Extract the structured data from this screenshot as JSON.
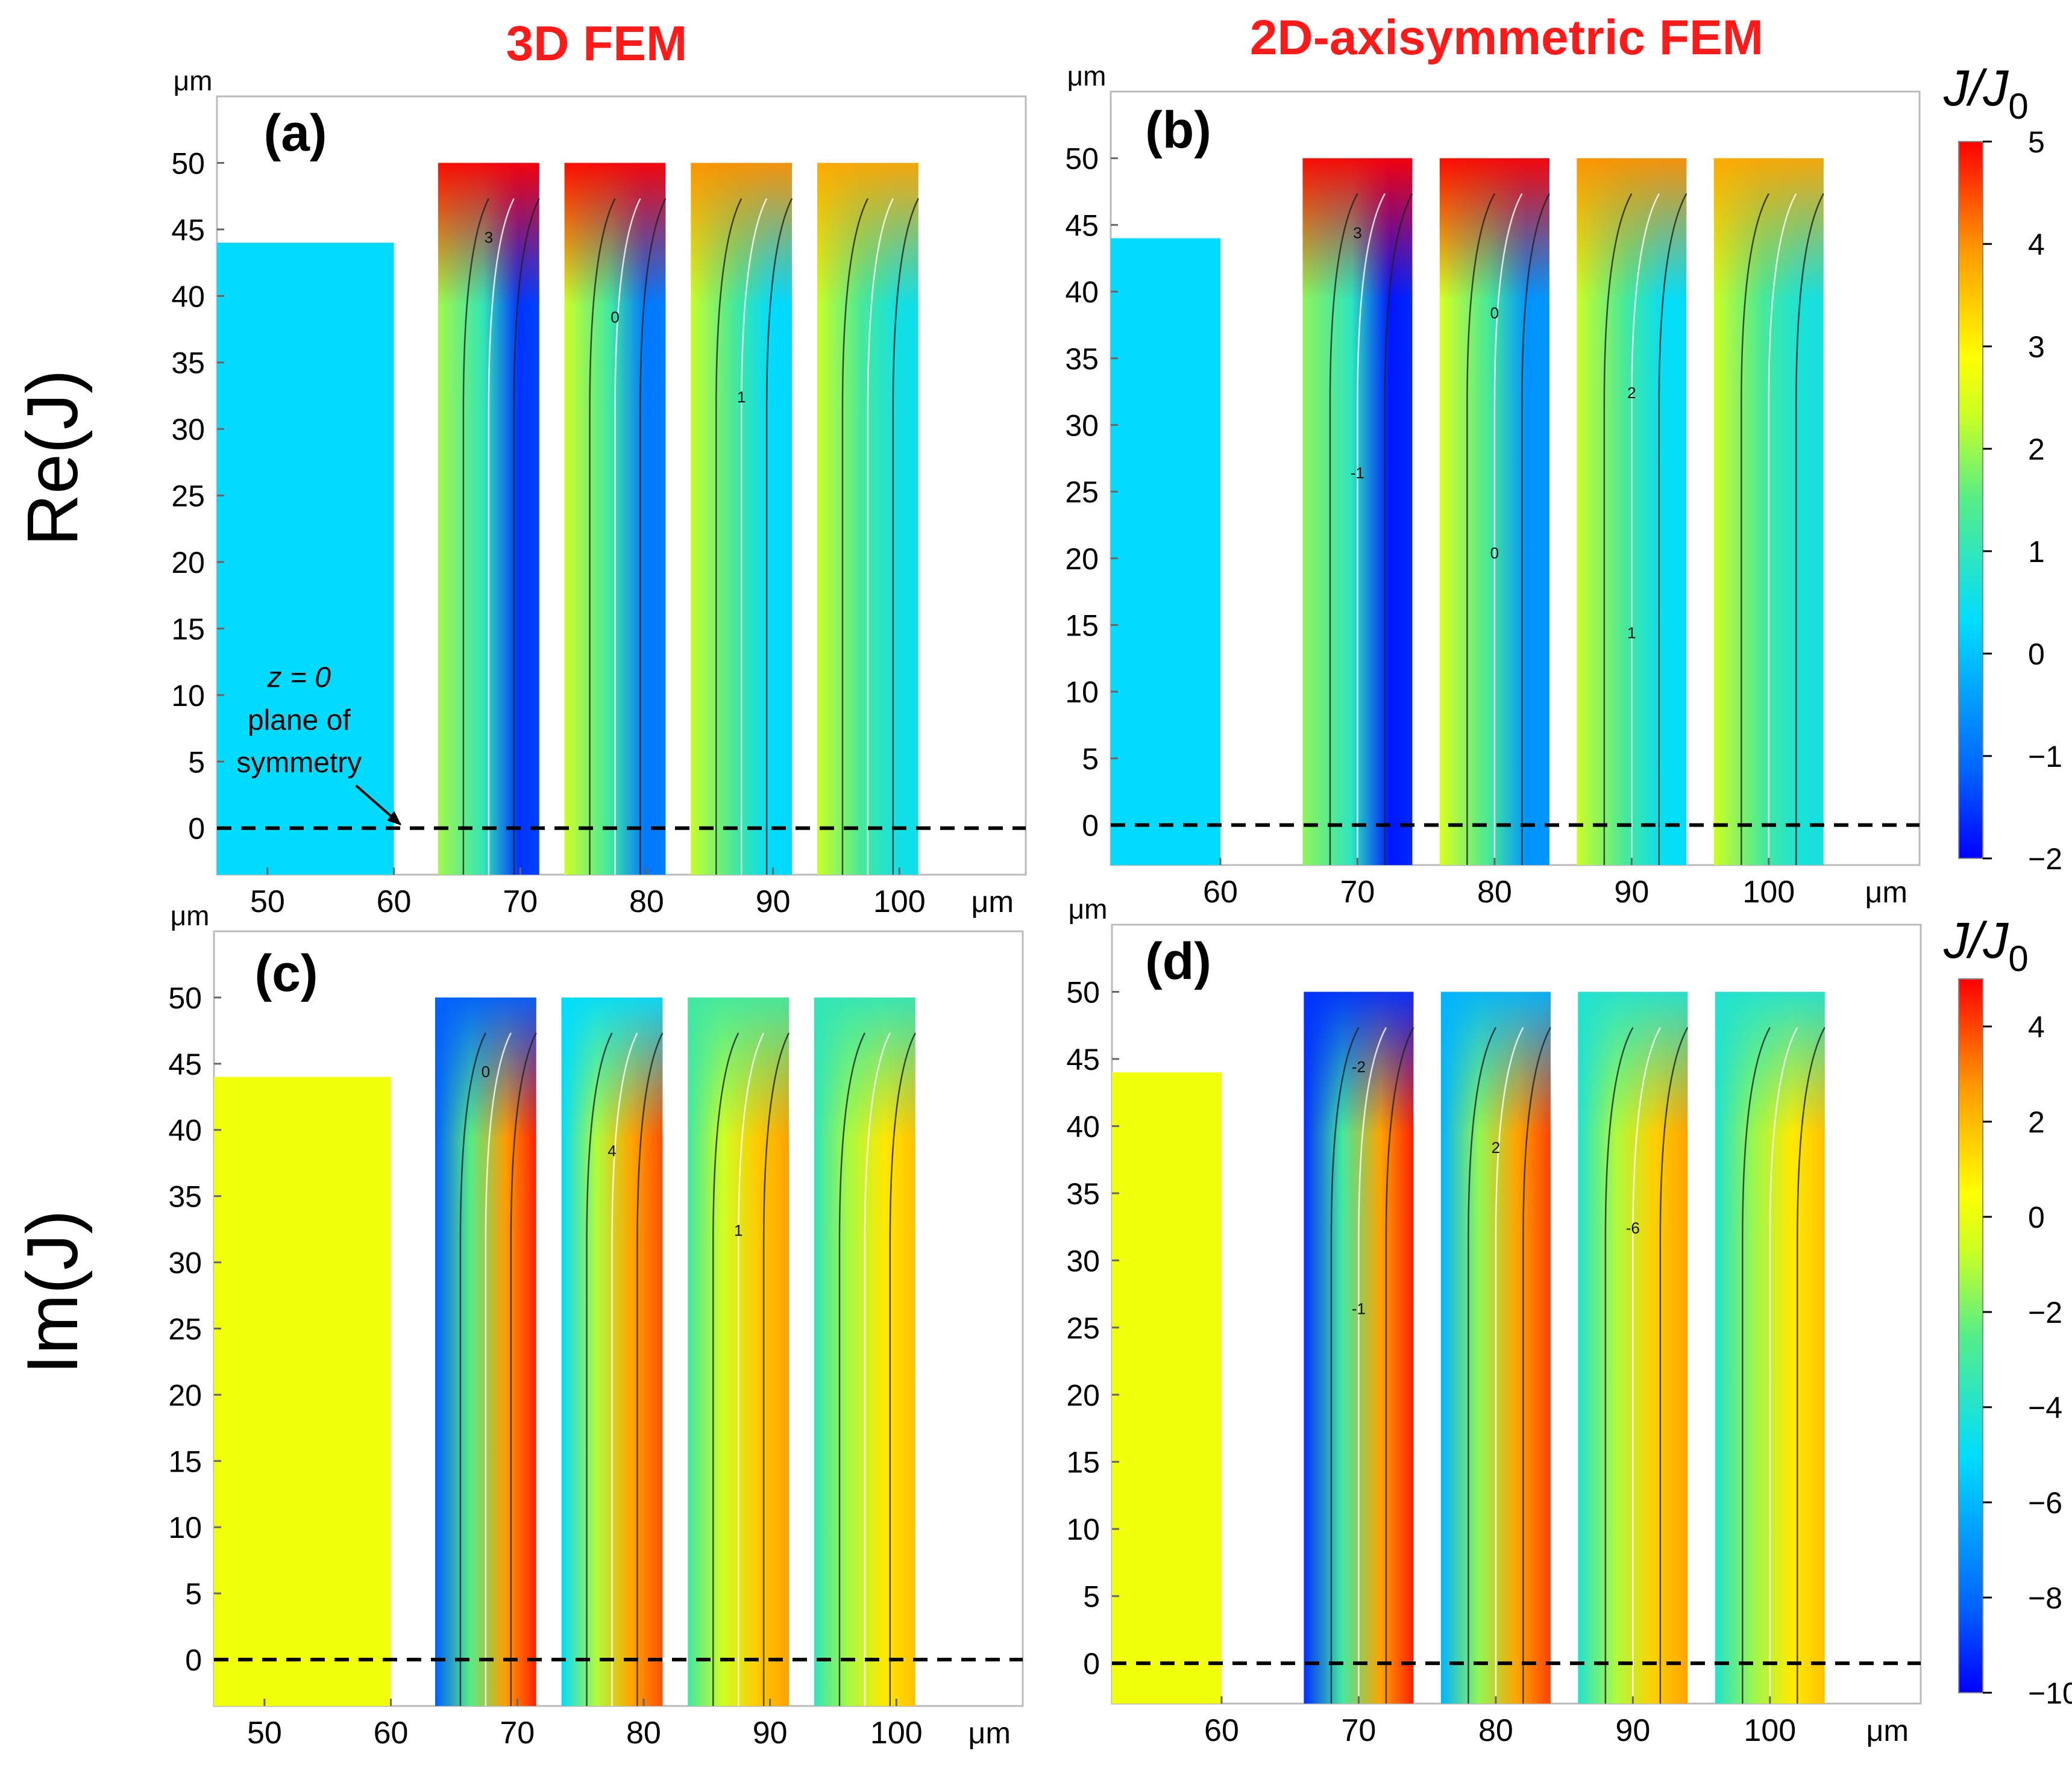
{
  "figure": {
    "col_titles": [
      "3D FEM",
      "2D-axisymmetric FEM"
    ],
    "row_labels": [
      "Re(J)",
      "Im(J)"
    ],
    "title_color": "#ff1a1a",
    "colorbar_label": {
      "base": "J/J",
      "sub": "0"
    }
  },
  "chart_data": [
    {
      "type": "heatmap",
      "panel": "(a)",
      "quantity": "Re(J)",
      "method": "3D FEM",
      "xlabel": "μm",
      "ylabel": "μm",
      "xlim": [
        46,
        110
      ],
      "ylim": [
        -3.5,
        55
      ],
      "xticks": [
        "50",
        "60",
        "70",
        "80",
        "90",
        "100"
      ],
      "yticks": [
        "0",
        "5",
        "10",
        "15",
        "20",
        "25",
        "30",
        "35",
        "40",
        "45",
        "50"
      ],
      "regions": [
        {
          "name": "inner conductor",
          "x": [
            46,
            60
          ],
          "z": [
            -3.5,
            44
          ],
          "fill_value": 0.3
        },
        {
          "name": "turn 1",
          "x": [
            63.5,
            71.5
          ],
          "z": [
            -3.5,
            50
          ],
          "value_range": [
            -1.5,
            5
          ]
        },
        {
          "name": "turn 2",
          "x": [
            73.5,
            81.5
          ],
          "z": [
            -3.5,
            50
          ],
          "value_range": [
            -0.8,
            5
          ]
        },
        {
          "name": "turn 3",
          "x": [
            83.5,
            91.5
          ],
          "z": [
            -3.5,
            50
          ],
          "value_range": [
            0.3,
            4
          ]
        },
        {
          "name": "turn 4",
          "x": [
            93.5,
            101.5
          ],
          "z": [
            -3.5,
            50
          ],
          "value_range": [
            0.6,
            3.8
          ]
        }
      ],
      "contour_labels": [
        "3",
        "0",
        "1"
      ],
      "annotation": {
        "z_label": "z = 0",
        "line1": "plane of",
        "line2": "symmetry"
      },
      "symmetry_plane_z": 0
    },
    {
      "type": "heatmap",
      "panel": "(b)",
      "quantity": "Re(J)",
      "method": "2D-axisymmetric FEM",
      "xlabel": "μm",
      "ylabel": "μm",
      "xlim": [
        52,
        111
      ],
      "ylim": [
        -3,
        55
      ],
      "xticks": [
        "60",
        "70",
        "80",
        "90",
        "100"
      ],
      "yticks": [
        "0",
        "5",
        "10",
        "15",
        "20",
        "25",
        "30",
        "35",
        "40",
        "45",
        "50"
      ],
      "regions": [
        {
          "name": "inner conductor",
          "x": [
            52,
            60
          ],
          "z": [
            -3,
            44
          ],
          "fill_value": 0.3
        },
        {
          "name": "turn 1",
          "x": [
            66,
            74
          ],
          "z": [
            -3,
            50
          ],
          "value_range": [
            -1.8,
            5
          ]
        },
        {
          "name": "turn 2",
          "x": [
            76,
            84
          ],
          "z": [
            -3,
            50
          ],
          "value_range": [
            -0.5,
            5
          ]
        },
        {
          "name": "turn 3",
          "x": [
            86,
            94
          ],
          "z": [
            -3,
            50
          ],
          "value_range": [
            0.4,
            4
          ]
        },
        {
          "name": "turn 4",
          "x": [
            96,
            104
          ],
          "z": [
            -3,
            50
          ],
          "value_range": [
            0.7,
            3.8
          ]
        }
      ],
      "contour_labels": [
        "3",
        "0",
        "2",
        "-1",
        "0",
        "1"
      ],
      "symmetry_plane_z": 0
    },
    {
      "type": "heatmap",
      "panel": "(c)",
      "quantity": "Im(J)",
      "method": "3D FEM",
      "xlabel": "μm",
      "ylabel": "μm",
      "xlim": [
        46,
        110
      ],
      "ylim": [
        -3.5,
        55
      ],
      "xticks": [
        "50",
        "60",
        "70",
        "80",
        "90",
        "100"
      ],
      "yticks": [
        "0",
        "5",
        "10",
        "15",
        "20",
        "25",
        "30",
        "35",
        "40",
        "45",
        "50"
      ],
      "regions": [
        {
          "name": "inner conductor",
          "x": [
            46,
            60
          ],
          "z": [
            -3.5,
            44
          ],
          "fill_value": 0.2
        },
        {
          "name": "turn 1",
          "x": [
            63.5,
            71.5
          ],
          "z": [
            -3.5,
            50
          ],
          "value_range": [
            -8,
            4.5
          ]
        },
        {
          "name": "turn 2",
          "x": [
            73.5,
            81.5
          ],
          "z": [
            -3.5,
            50
          ],
          "value_range": [
            -5,
            3.8
          ]
        },
        {
          "name": "turn 3",
          "x": [
            83.5,
            91.5
          ],
          "z": [
            -3.5,
            50
          ],
          "value_range": [
            -3,
            2.5
          ]
        },
        {
          "name": "turn 4",
          "x": [
            93.5,
            101.5
          ],
          "z": [
            -3.5,
            50
          ],
          "value_range": [
            -3.5,
            1.8
          ]
        }
      ],
      "contour_labels": [
        "0",
        "4",
        "1"
      ],
      "symmetry_plane_z": 0
    },
    {
      "type": "heatmap",
      "panel": "(d)",
      "quantity": "Im(J)",
      "method": "2D-axisymmetric FEM",
      "xlabel": "μm",
      "ylabel": "μm",
      "xlim": [
        52,
        111
      ],
      "ylim": [
        -3,
        55
      ],
      "xticks": [
        "60",
        "70",
        "80",
        "90",
        "100"
      ],
      "yticks": [
        "0",
        "5",
        "10",
        "15",
        "20",
        "25",
        "30",
        "35",
        "40",
        "45",
        "50"
      ],
      "regions": [
        {
          "name": "inner conductor",
          "x": [
            52,
            60
          ],
          "z": [
            -3,
            44
          ],
          "fill_value": 0.2
        },
        {
          "name": "turn 1",
          "x": [
            66,
            74
          ],
          "z": [
            -3,
            50
          ],
          "value_range": [
            -9,
            4.5
          ]
        },
        {
          "name": "turn 2",
          "x": [
            76,
            84
          ],
          "z": [
            -3,
            50
          ],
          "value_range": [
            -6,
            4
          ]
        },
        {
          "name": "turn 3",
          "x": [
            86,
            94
          ],
          "z": [
            -3,
            50
          ],
          "value_range": [
            -4,
            2.5
          ]
        },
        {
          "name": "turn 4",
          "x": [
            96,
            104
          ],
          "z": [
            -3,
            50
          ],
          "value_range": [
            -4,
            1.8
          ]
        }
      ],
      "contour_labels": [
        "-2",
        "2",
        "-6",
        "-1"
      ],
      "symmetry_plane_z": 0
    }
  ],
  "colorbars": [
    {
      "for": "Re(J)",
      "range": [
        -2,
        5
      ],
      "ticks": [
        "5",
        "4",
        "3",
        "2",
        "1",
        "0",
        "−1",
        "−2"
      ],
      "tick_values": [
        5,
        4,
        3,
        2,
        1,
        0,
        -1,
        -2
      ]
    },
    {
      "for": "Im(J)",
      "range": [
        -10,
        5
      ],
      "ticks": [
        "4",
        "2",
        "0",
        "−2",
        "−4",
        "−6",
        "−8",
        "−10"
      ],
      "tick_values": [
        4,
        2,
        0,
        -2,
        -4,
        -6,
        -8,
        -10
      ]
    }
  ]
}
